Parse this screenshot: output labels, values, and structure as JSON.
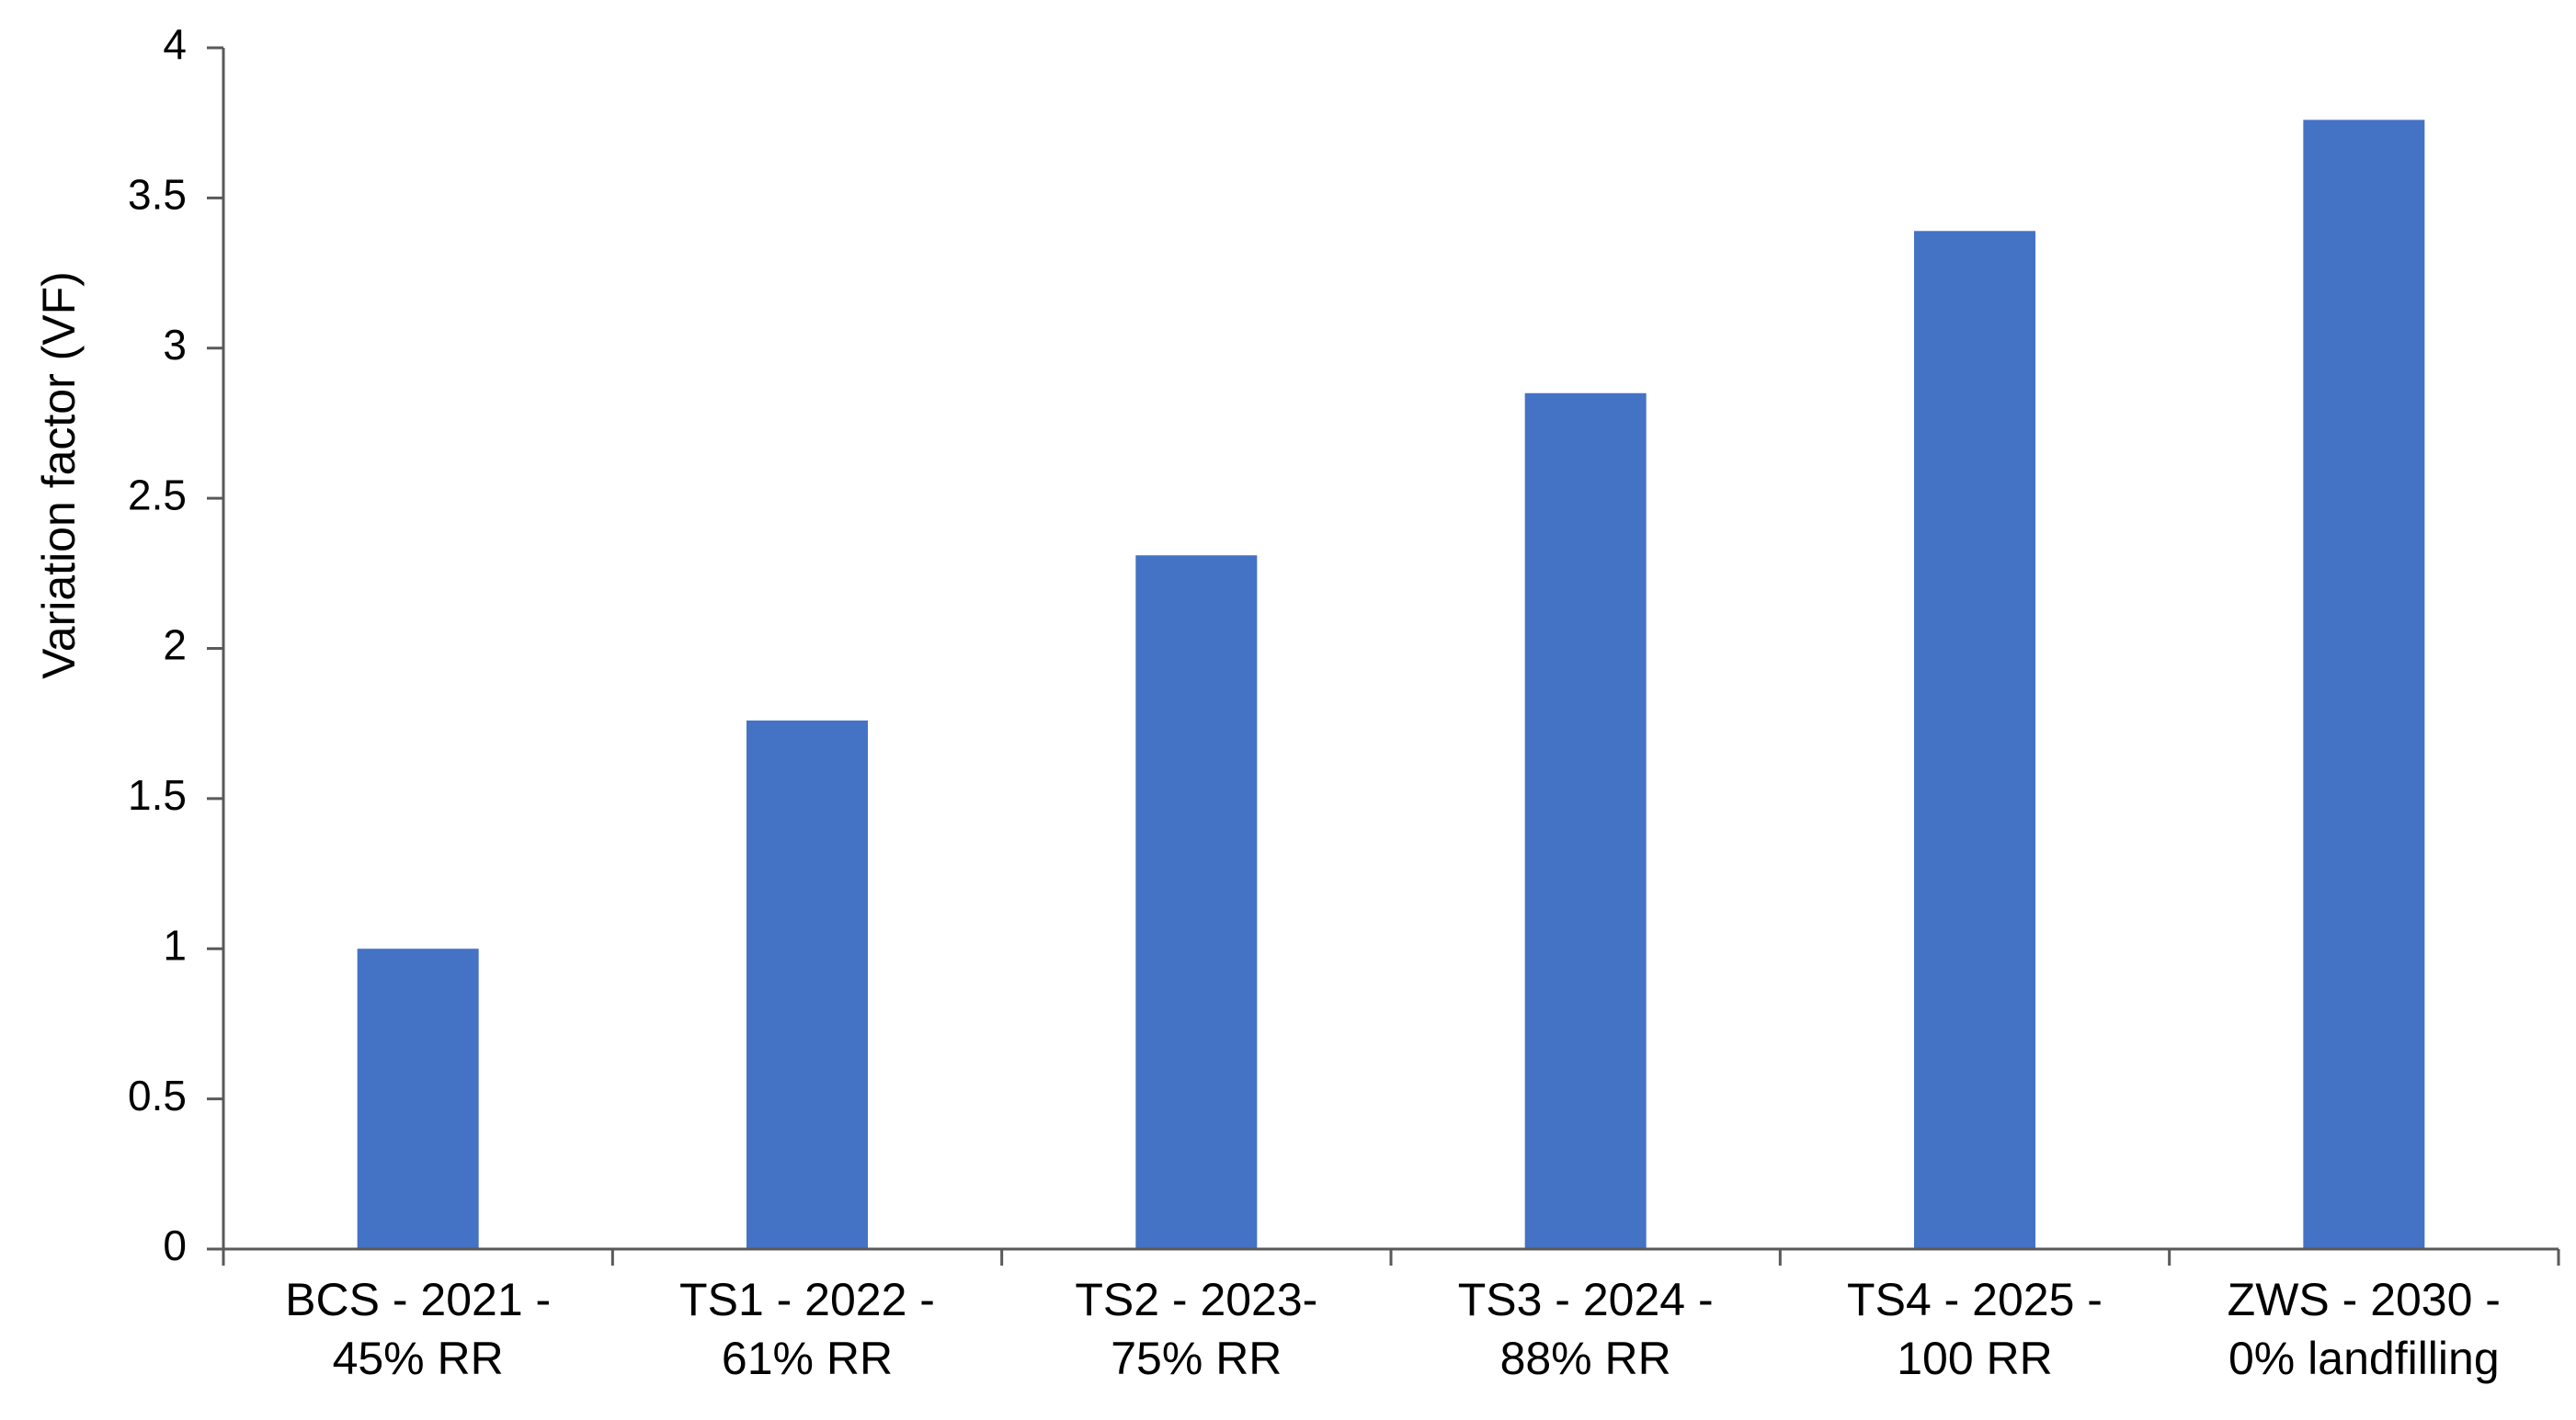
{
  "chart_data": {
    "type": "bar",
    "title": "",
    "xlabel": "",
    "ylabel": "Variation factor (VF)",
    "ylim": [
      0,
      4
    ],
    "yticks": [
      "0",
      "0.5",
      "1",
      "1.5",
      "2",
      "2.5",
      "3",
      "3.5",
      "4"
    ],
    "categories": [
      [
        "BCS - 2021 -",
        "45% RR"
      ],
      [
        "TS1 - 2022 -",
        "61% RR"
      ],
      [
        "TS2 - 2023-",
        "75% RR"
      ],
      [
        "TS3 - 2024 -",
        "88% RR"
      ],
      [
        "TS4 - 2025 -",
        "100 RR"
      ],
      [
        "ZWS - 2030 -",
        "0% landfilling"
      ]
    ],
    "values": [
      1.0,
      1.76,
      2.31,
      2.85,
      3.39,
      3.76
    ],
    "grid": false,
    "legend": "none",
    "colors": {
      "bar": "#4472C4",
      "axis": "#595959"
    }
  }
}
